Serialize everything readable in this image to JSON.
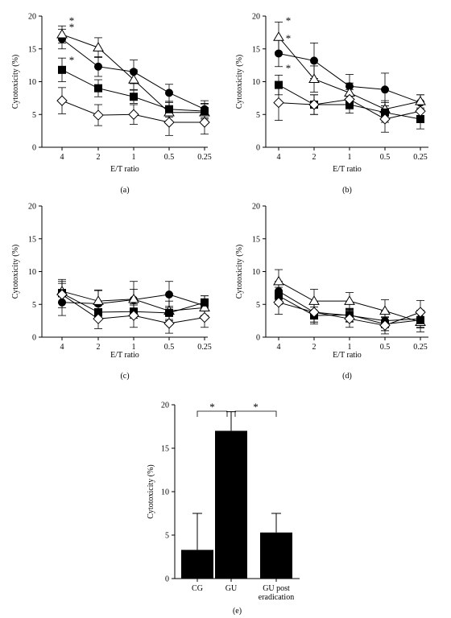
{
  "chart_data": [
    {
      "panel_label": "(a)",
      "type": "line",
      "xlabel": "E/T ratio",
      "ylabel": "Cytotoxicity (%)",
      "categories": [
        "4",
        "2",
        "1",
        "0.5",
        "0.25"
      ],
      "ylim": [
        0,
        20
      ],
      "yticks": [
        "0",
        "5",
        "10",
        "15",
        "20"
      ],
      "grid": false,
      "legend": "none",
      "series": [
        {
          "marker": "filled-circle",
          "values": [
            16.5,
            12.3,
            11.5,
            8.3,
            5.8
          ],
          "errors": [
            1.5,
            1.5,
            1.8,
            1.3,
            1.3
          ]
        },
        {
          "marker": "open-triangle",
          "values": [
            17.2,
            15.2,
            10.3,
            5.3,
            5.3
          ],
          "errors": [
            1.3,
            1.5,
            1.5,
            1.5,
            1.3
          ]
        },
        {
          "marker": "filled-square",
          "values": [
            11.8,
            9.0,
            7.7,
            5.8,
            5.5
          ],
          "errors": [
            1.8,
            1.3,
            1.0,
            1.2,
            1.2
          ]
        },
        {
          "marker": "open-diamond",
          "values": [
            7.1,
            4.9,
            5.0,
            3.8,
            3.8
          ],
          "errors": [
            2.0,
            1.6,
            1.5,
            2.0,
            1.8
          ]
        }
      ],
      "annotations": [
        {
          "text": "*",
          "category": "4",
          "value": 19.5
        },
        {
          "text": "*",
          "category": "4",
          "value": 18.5
        },
        {
          "text": "*",
          "category": "4",
          "value": 13.5
        }
      ]
    },
    {
      "panel_label": "(b)",
      "type": "line",
      "xlabel": "E/T ratio",
      "ylabel": "Cytotoxicity (%)",
      "categories": [
        "4",
        "2",
        "1",
        "0.5",
        "0.25"
      ],
      "ylim": [
        0,
        20
      ],
      "yticks": [
        "0",
        "5",
        "10",
        "15",
        "20"
      ],
      "grid": false,
      "legend": "none",
      "series": [
        {
          "marker": "filled-circle",
          "values": [
            14.3,
            13.2,
            9.3,
            8.8,
            6.8
          ],
          "errors": [
            2.0,
            2.7,
            1.8,
            2.5,
            1.2
          ]
        },
        {
          "marker": "open-triangle",
          "values": [
            16.8,
            10.4,
            8.3,
            5.8,
            7.0
          ],
          "errors": [
            2.3,
            2.0,
            1.5,
            1.3,
            1.0
          ]
        },
        {
          "marker": "filled-square",
          "values": [
            9.5,
            6.5,
            6.5,
            5.3,
            4.3
          ],
          "errors": [
            1.5,
            1.5,
            1.3,
            1.5,
            1.5
          ]
        },
        {
          "marker": "open-diamond",
          "values": [
            6.8,
            6.5,
            7.3,
            4.3,
            5.5
          ],
          "errors": [
            2.7,
            1.5,
            1.5,
            2.0,
            1.5
          ]
        }
      ],
      "annotations": [
        {
          "text": "*",
          "category": "4",
          "value": 19.5
        },
        {
          "text": "*",
          "category": "4",
          "value": 16.8
        },
        {
          "text": "*",
          "category": "4",
          "value": 12.3
        }
      ]
    },
    {
      "panel_label": "(c)",
      "type": "line",
      "xlabel": "E/T ratio",
      "ylabel": "Cytotoxicity (%)",
      "categories": [
        "4",
        "2",
        "1",
        "0.5",
        "0.25"
      ],
      "ylim": [
        0,
        20
      ],
      "yticks": [
        "0",
        "5",
        "10",
        "15",
        "20"
      ],
      "grid": false,
      "legend": "none",
      "series": [
        {
          "marker": "filled-circle",
          "values": [
            5.3,
            5.1,
            5.7,
            6.5,
            4.8
          ],
          "errors": [
            2.0,
            2.0,
            2.8,
            2.0,
            1.5
          ]
        },
        {
          "marker": "open-triangle",
          "values": [
            7.0,
            5.5,
            5.8,
            4.0,
            4.5
          ],
          "errors": [
            1.8,
            1.7,
            1.5,
            1.5,
            1.3
          ]
        },
        {
          "marker": "filled-square",
          "values": [
            6.7,
            3.8,
            3.9,
            3.7,
            5.3
          ],
          "errors": [
            1.5,
            1.0,
            1.0,
            1.0,
            1.0
          ]
        },
        {
          "marker": "open-diamond",
          "values": [
            6.5,
            2.8,
            3.3,
            2.1,
            3.0
          ],
          "errors": [
            2.0,
            1.5,
            1.8,
            1.5,
            1.5
          ]
        }
      ],
      "annotations": []
    },
    {
      "panel_label": "(d)",
      "type": "line",
      "xlabel": "E/T ratio",
      "ylabel": "Cytotoxicity (%)",
      "categories": [
        "4",
        "2",
        "1",
        "0.5",
        "0.25"
      ],
      "ylim": [
        0,
        20
      ],
      "yticks": [
        "0",
        "5",
        "10",
        "15",
        "20"
      ],
      "grid": false,
      "legend": "none",
      "series": [
        {
          "marker": "filled-circle",
          "values": [
            7.0,
            3.8,
            3.3,
            2.5,
            2.8
          ],
          "errors": [
            1.5,
            1.5,
            1.0,
            1.5,
            1.3
          ]
        },
        {
          "marker": "open-triangle",
          "values": [
            8.5,
            5.5,
            5.5,
            4.0,
            2.3
          ],
          "errors": [
            1.8,
            1.8,
            1.3,
            1.7,
            1.5
          ]
        },
        {
          "marker": "filled-square",
          "values": [
            6.3,
            3.3,
            3.4,
            2.0,
            2.6
          ],
          "errors": [
            1.3,
            1.3,
            1.0,
            1.0,
            1.2
          ]
        },
        {
          "marker": "open-diamond",
          "values": [
            5.3,
            3.8,
            2.8,
            1.8,
            3.8
          ],
          "errors": [
            1.8,
            1.5,
            1.3,
            1.3,
            1.8
          ]
        }
      ],
      "annotations": []
    },
    {
      "panel_label": "(e)",
      "type": "bar",
      "xlabel": "",
      "ylabel": "Cytotoxicity (%)",
      "categories": [
        "CG",
        "GU",
        "GU post eradication"
      ],
      "category_lines": [
        [
          "CG"
        ],
        [
          "GU"
        ],
        [
          "GU post",
          "eradication"
        ]
      ],
      "values": [
        3.3,
        17.0,
        5.3
      ],
      "errors": [
        4.2,
        2.2,
        2.2
      ],
      "ylim": [
        0,
        20
      ],
      "yticks": [
        "0",
        "5",
        "10",
        "15",
        "20"
      ],
      "grid": false,
      "legend": "none",
      "significance": [
        {
          "from": "CG",
          "to": "GU",
          "text": "*"
        },
        {
          "from": "GU",
          "to": "GU post eradication",
          "text": "*"
        }
      ]
    }
  ],
  "colors": {
    "ink": "#000000",
    "background": "#ffffff"
  }
}
